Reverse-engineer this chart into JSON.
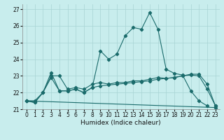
{
  "xlabel": "Humidex (Indice chaleur)",
  "xlim": [
    -0.5,
    23.5
  ],
  "ylim": [
    21.0,
    27.3
  ],
  "yticks": [
    21,
    22,
    23,
    24,
    25,
    26,
    27
  ],
  "xticks": [
    0,
    1,
    2,
    3,
    4,
    5,
    6,
    7,
    8,
    9,
    10,
    11,
    12,
    13,
    14,
    15,
    16,
    17,
    18,
    19,
    20,
    21,
    22,
    23
  ],
  "bg_color": "#c8eded",
  "grid_color": "#a8d4d4",
  "line_color": "#1a6b6b",
  "line1_x": [
    0,
    1,
    2,
    3,
    4,
    5,
    6,
    7,
    8,
    9,
    10,
    11,
    12,
    13,
    14,
    15,
    16,
    17,
    18,
    19,
    20,
    21,
    22,
    23
  ],
  "line1_y": [
    21.5,
    21.4,
    22.0,
    23.2,
    22.1,
    22.1,
    22.2,
    22.0,
    22.3,
    24.5,
    24.0,
    24.3,
    25.4,
    25.9,
    25.8,
    26.8,
    25.8,
    23.4,
    23.15,
    23.05,
    22.1,
    21.5,
    21.2,
    null
  ],
  "line2_x": [
    0,
    1,
    2,
    3,
    4,
    5,
    6,
    7,
    8,
    9,
    10,
    11,
    12,
    13,
    14,
    15,
    16,
    17,
    18,
    19,
    20,
    21,
    22,
    23
  ],
  "line2_y": [
    21.5,
    21.4,
    22.0,
    23.0,
    23.0,
    22.2,
    22.3,
    22.2,
    22.5,
    22.6,
    22.5,
    22.6,
    22.6,
    22.7,
    22.7,
    22.8,
    22.9,
    22.85,
    22.9,
    23.0,
    23.05,
    23.0,
    22.2,
    21.2
  ],
  "line3_x": [
    0,
    1,
    2,
    3,
    4,
    5,
    6,
    7,
    8,
    9,
    10,
    11,
    12,
    13,
    14,
    15,
    16,
    17,
    18,
    19,
    20,
    21,
    22,
    23
  ],
  "line3_y": [
    21.5,
    21.5,
    22.0,
    22.9,
    22.1,
    22.1,
    22.2,
    22.0,
    22.3,
    22.4,
    22.45,
    22.5,
    22.55,
    22.6,
    22.65,
    22.7,
    22.8,
    22.85,
    22.9,
    23.0,
    23.1,
    23.1,
    22.5,
    21.2
  ],
  "line4_x": [
    0,
    23
  ],
  "line4_y": [
    21.5,
    21.1
  ]
}
